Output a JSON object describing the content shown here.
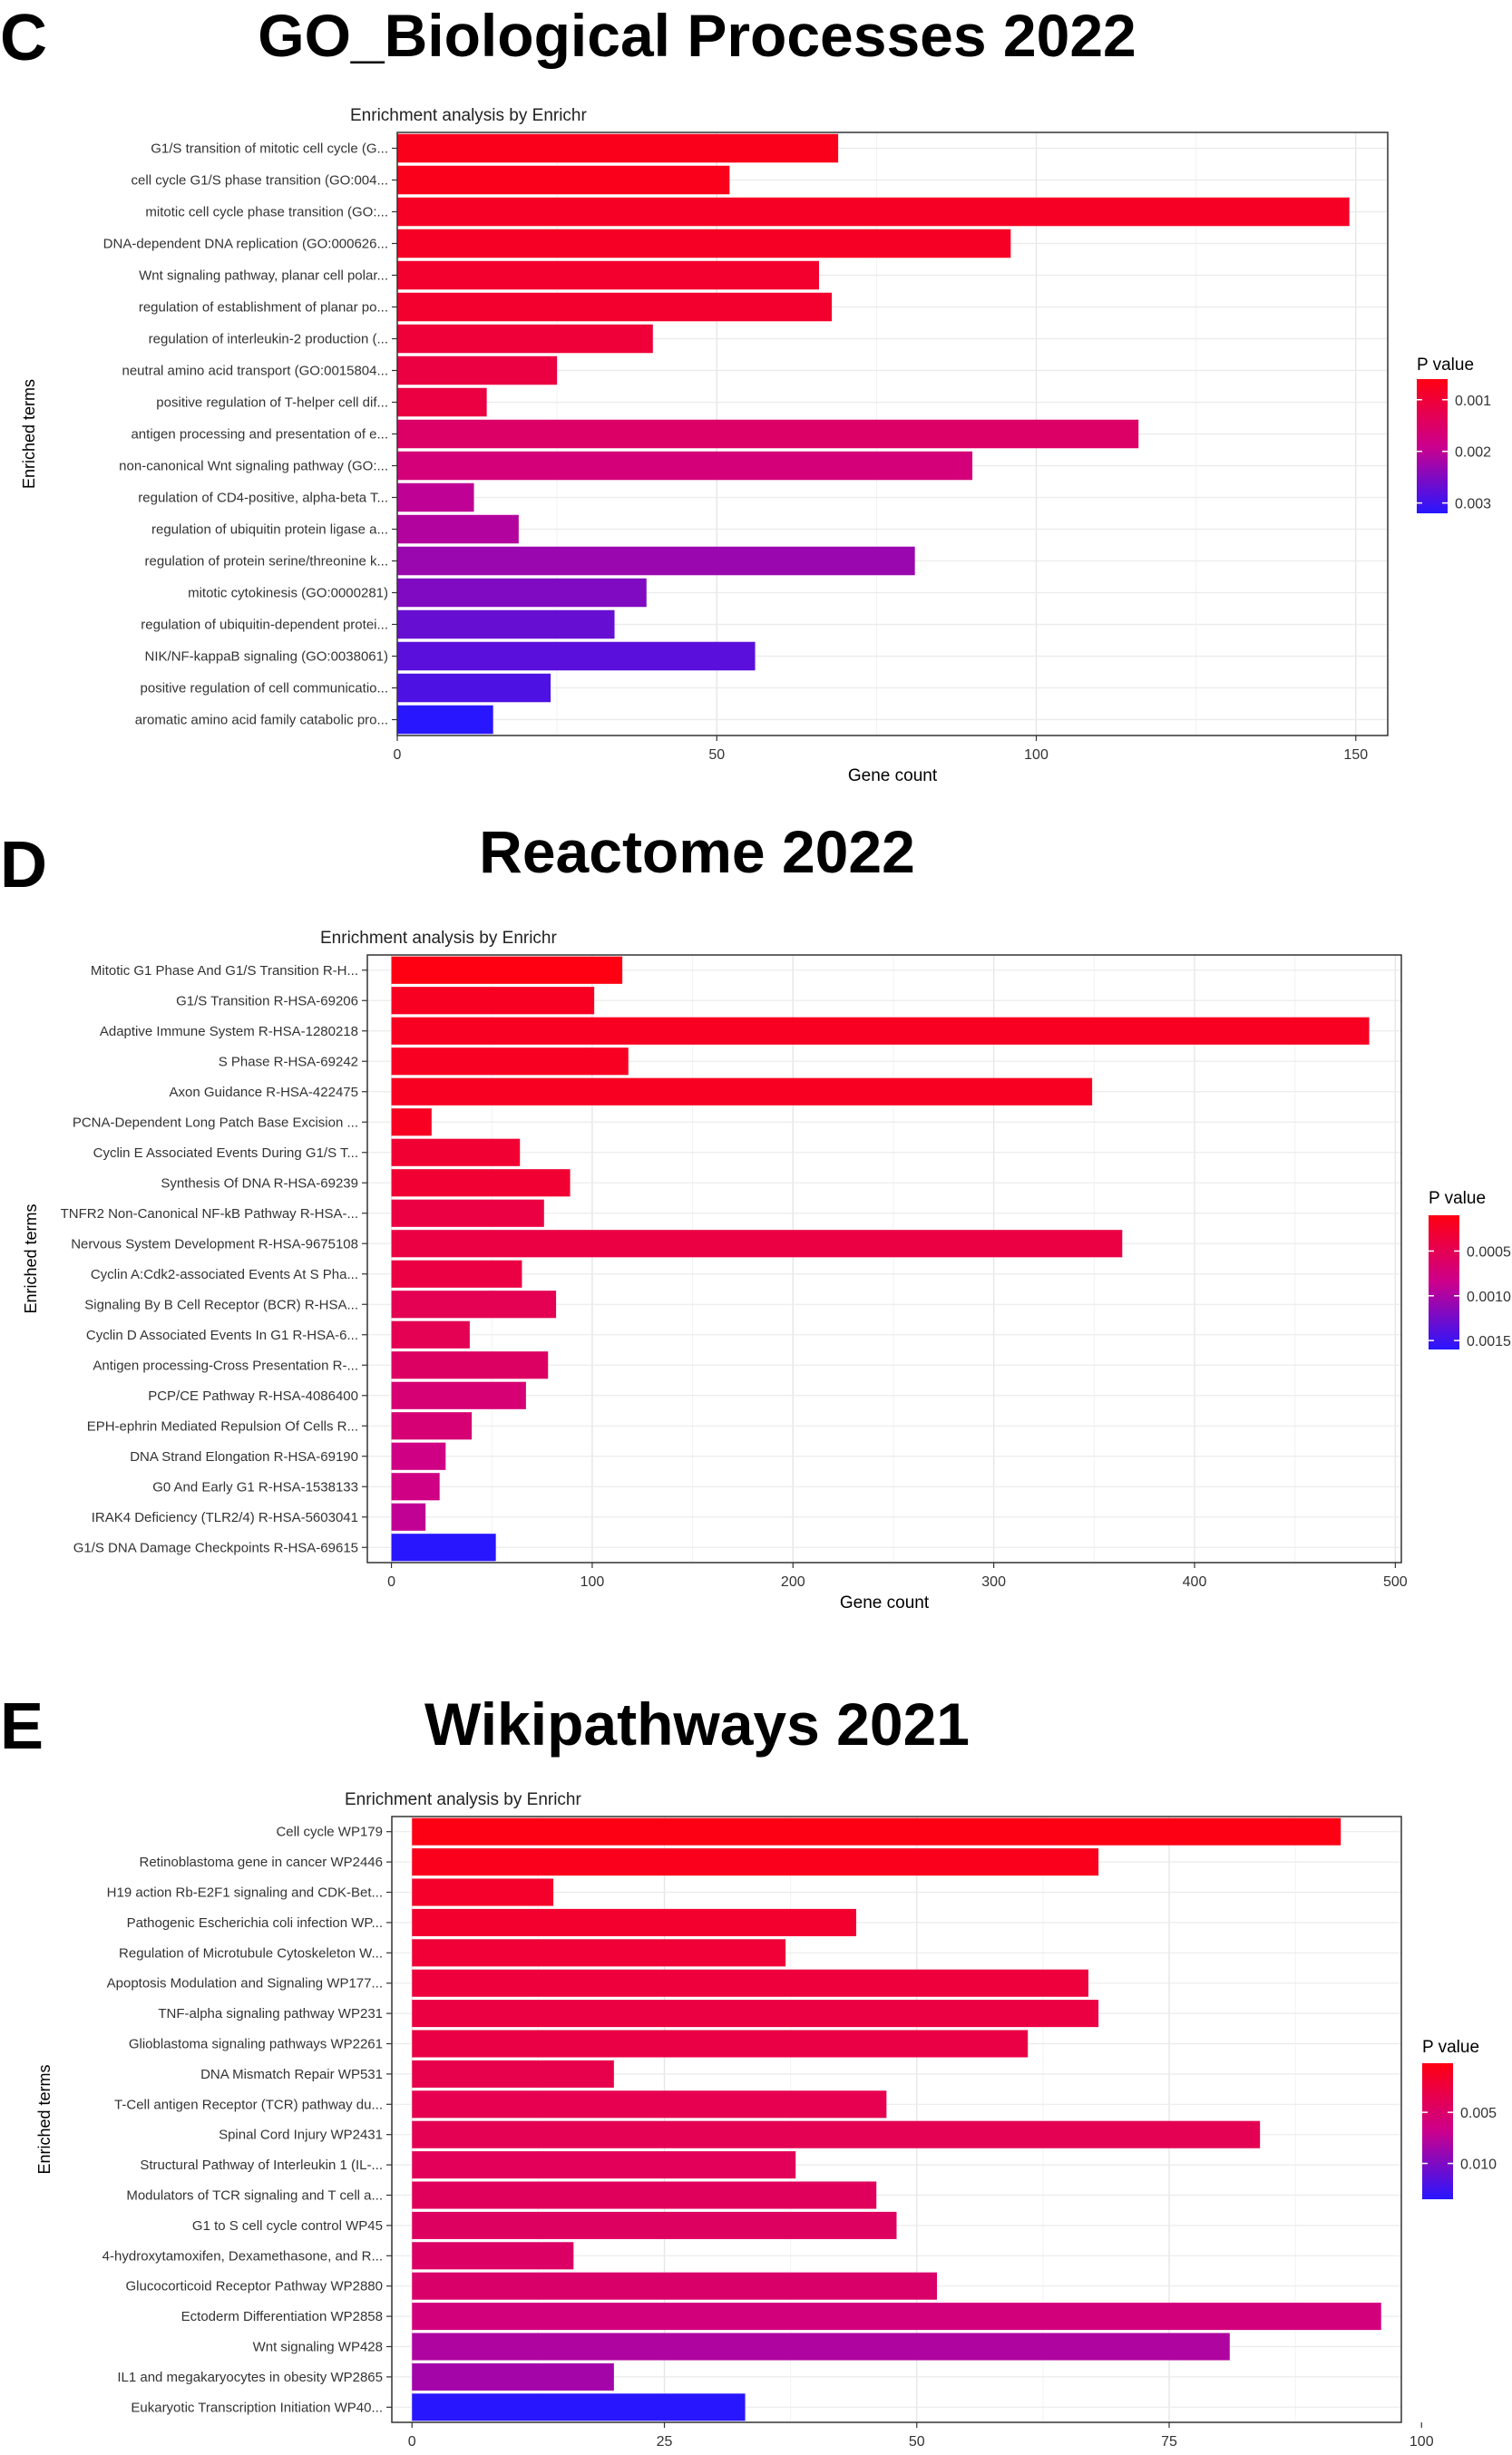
{
  "chart_data": [
    {
      "panel": "C",
      "type": "bar",
      "title": "GO_Biological Processes 2022",
      "subtitle": "Enrichment analysis by Enrichr",
      "xlabel": "Gene count",
      "ylabel": "Enriched terms",
      "xlim": [
        0,
        155
      ],
      "xticks": [
        0,
        50,
        100,
        150
      ],
      "legend": {
        "title": "P value",
        "position": "right",
        "min": 0.0006,
        "max": 0.0032,
        "ticks": [
          0.001,
          0.002,
          0.003
        ],
        "tick_labels": [
          "0.001",
          "0.002",
          "0.003"
        ]
      },
      "categories": [
        "G1/S transition of mitotic cell cycle (G...",
        "cell cycle G1/S phase transition (GO:004...",
        "mitotic cell cycle phase transition (GO:...",
        "DNA-dependent DNA replication (GO:000626...",
        "Wnt signaling pathway, planar cell polar...",
        "regulation of establishment of planar po...",
        "regulation of interleukin-2 production (...",
        "neutral amino acid transport (GO:0015804...",
        "positive regulation of T-helper cell dif...",
        "antigen processing and presentation of e...",
        "non-canonical Wnt signaling pathway (GO:...",
        "regulation of CD4-positive, alpha-beta T...",
        "regulation of ubiquitin protein ligase a...",
        "regulation of protein serine/threonine k...",
        "mitotic cytokinesis (GO:0000281)",
        "regulation of ubiquitin-dependent protei...",
        "NIK/NF-kappaB signaling (GO:0038061)",
        "positive regulation of cell communicatio...",
        "aromatic amino acid family catabolic pro..."
      ],
      "values": [
        69,
        52,
        149,
        96,
        66,
        68,
        40,
        25,
        14,
        116,
        90,
        12,
        19,
        81,
        39,
        34,
        56,
        24,
        15
      ],
      "pvalues": [
        0.0007,
        0.0007,
        0.0008,
        0.0008,
        0.0009,
        0.0009,
        0.001,
        0.0011,
        0.0011,
        0.0015,
        0.0017,
        0.002,
        0.0021,
        0.0023,
        0.0025,
        0.0027,
        0.0028,
        0.0029,
        0.0032
      ]
    },
    {
      "panel": "D",
      "type": "bar",
      "title": "Reactome 2022",
      "subtitle": "Enrichment analysis by Enrichr",
      "xlabel": "Gene count",
      "ylabel": "Enriched terms",
      "xlim": [
        -12,
        503
      ],
      "xticks": [
        0,
        100,
        200,
        300,
        400,
        500
      ],
      "legend": {
        "title": "P value",
        "position": "right",
        "min": 0.0001,
        "max": 0.0016,
        "ticks": [
          0.0005,
          0.001,
          0.0015
        ],
        "tick_labels": [
          "0.0005",
          "0.0010",
          "0.0015"
        ]
      },
      "categories": [
        "Mitotic G1 Phase And G1/S Transition R-H...",
        "G1/S Transition R-HSA-69206",
        "Adaptive Immune System R-HSA-1280218",
        "S Phase R-HSA-69242",
        "Axon Guidance R-HSA-422475",
        "PCNA-Dependent Long Patch Base Excision ...",
        "Cyclin E Associated Events During G1/S T...",
        "Synthesis Of DNA R-HSA-69239",
        "TNFR2 Non-Canonical NF-kB Pathway R-HSA-...",
        "Nervous System Development R-HSA-9675108",
        "Cyclin A:Cdk2-associated Events At S Pha...",
        "Signaling By B Cell Receptor (BCR) R-HSA...",
        "Cyclin D Associated Events In G1 R-HSA-6...",
        "Antigen processing-Cross Presentation R-...",
        "PCP/CE Pathway R-HSA-4086400",
        "EPH-ephrin Mediated Repulsion Of Cells R...",
        "DNA Strand Elongation R-HSA-69190",
        "G0 And Early G1 R-HSA-1538133",
        "IRAK4 Deficiency (TLR2/4) R-HSA-5603041",
        "G1/S DNA Damage Checkpoints R-HSA-69615"
      ],
      "values": [
        115,
        101,
        487,
        118,
        349,
        20,
        64,
        89,
        76,
        364,
        65,
        82,
        39,
        78,
        67,
        40,
        27,
        24,
        17,
        52
      ],
      "pvalues": [
        0.0001,
        0.0002,
        0.0002,
        0.0002,
        0.0002,
        0.0002,
        0.0003,
        0.0003,
        0.0004,
        0.0004,
        0.0004,
        0.0005,
        0.0005,
        0.0006,
        0.0007,
        0.0007,
        0.0008,
        0.0008,
        0.0009,
        0.0016
      ]
    },
    {
      "panel": "E",
      "type": "bar",
      "title": "Wikipathways 2021",
      "subtitle": "Enrichment analysis by Enrichr",
      "xlabel": "Gene count",
      "ylabel": "Enriched terms",
      "xlim": [
        -2,
        98
      ],
      "xticks": [
        0,
        25,
        50,
        75,
        100
      ],
      "legend": {
        "title": "P value",
        "position": "right",
        "min": 0.0002,
        "max": 0.0135,
        "ticks": [
          0.005,
          0.01
        ],
        "tick_labels": [
          "0.005",
          "0.010"
        ]
      },
      "categories": [
        "Cell cycle WP179",
        "Retinoblastoma gene in cancer WP2446",
        "H19 action Rb-E2F1 signaling and CDK-Bet...",
        "Pathogenic Escherichia coli infection WP...",
        "Regulation of Microtubule Cytoskeleton W...",
        "Apoptosis Modulation and Signaling WP177...",
        "TNF-alpha signaling pathway WP231",
        "Glioblastoma signaling pathways WP2261",
        "DNA Mismatch Repair WP531",
        "T-Cell antigen Receptor (TCR) pathway du...",
        "Spinal Cord Injury WP2431",
        "Structural Pathway of Interleukin 1 (IL-...",
        "Modulators of TCR signaling and T cell a...",
        "G1 to S cell cycle control WP45",
        "4-hydroxytamoxifen, Dexamethasone, and R...",
        "Glucocorticoid Receptor Pathway WP2880",
        "Ectoderm Differentiation WP2858",
        "Wnt signaling WP428",
        "IL1 and megakaryocytes in obesity WP2865",
        "Eukaryotic Transcription Initiation WP40..."
      ],
      "values": [
        92,
        68,
        14,
        44,
        37,
        67,
        68,
        61,
        20,
        47,
        84,
        38,
        46,
        48,
        16,
        52,
        96,
        81,
        20,
        33
      ],
      "pvalues": [
        0.0003,
        0.0008,
        0.0015,
        0.0018,
        0.0022,
        0.0025,
        0.0028,
        0.003,
        0.0033,
        0.0035,
        0.0037,
        0.004,
        0.0042,
        0.0045,
        0.0047,
        0.005,
        0.006,
        0.008,
        0.0085,
        0.0135
      ]
    }
  ]
}
